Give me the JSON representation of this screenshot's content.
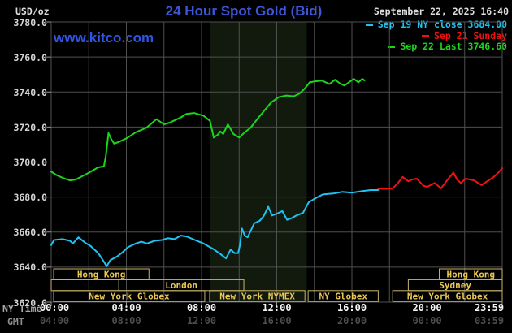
{
  "header": {
    "units_label": "USD/oz",
    "title": "24 Hour Spot Gold (Bid)",
    "watermark": "www.kitco.com",
    "datetime": "September 22, 2025 16:40"
  },
  "legend": [
    {
      "label": "Sep 19 NY close 3684.00",
      "color": "#1EC3F2"
    },
    {
      "label": "Sep 21 Sunday",
      "color": "#F21111"
    },
    {
      "label": "Sep 22 Last 3746.60",
      "color": "#1BD61B"
    }
  ],
  "colors": {
    "title_blue": "#3D56D8",
    "kitco_blue": "#2F55E3",
    "grid": "#4F4F4F",
    "band": "#121A0E",
    "session_border": "#C7B469",
    "session_text": "#E9C854",
    "tick": "#9A9A9A"
  },
  "axes": {
    "ny_time_label": "NY Time",
    "gmt_label": "GMT",
    "y_tick_labels": [
      "3780.0",
      "3760.0",
      "3740.0",
      "3720.0",
      "3700.0",
      "3680.0",
      "3660.0",
      "3640.0",
      "3620.0"
    ],
    "x_ticks": [
      {
        "hour": 0,
        "ny": "00:00",
        "gmt": "04:00"
      },
      {
        "hour": 4,
        "ny": "04:00",
        "gmt": "08:00"
      },
      {
        "hour": 8,
        "ny": "08:00",
        "gmt": "12:00"
      },
      {
        "hour": 12,
        "ny": "12:00",
        "gmt": "16:00"
      },
      {
        "hour": 16,
        "ny": "16:00",
        "gmt": "20:00"
      },
      {
        "hour": 20,
        "ny": "20:00",
        "gmt": "00:00"
      },
      {
        "hour": 24,
        "ny": "23:59",
        "gmt": "03:59"
      }
    ]
  },
  "chart_data": {
    "type": "line",
    "title": "24 Hour Spot Gold (Bid)",
    "ylabel": "USD/oz",
    "ylim": [
      3620,
      3780
    ],
    "y_tick_step": 20,
    "xlim_hours": [
      0,
      24
    ],
    "x_grid_step_hours": 2,
    "grid": true,
    "prev_ny_close": 3684.0,
    "last": 3746.6,
    "nymex_band_hours": [
      8.43,
      13.6
    ],
    "sessions": [
      {
        "row": 0,
        "start": 0.13,
        "end": 5.2,
        "label": "Hong Kong"
      },
      {
        "row": 0,
        "start": 20.65,
        "end": 24.0,
        "label": "Hong Kong"
      },
      {
        "row": 1,
        "start": 0.0,
        "end": 3.6,
        "label": ""
      },
      {
        "row": 1,
        "start": 3.6,
        "end": 10.25,
        "label": "London"
      },
      {
        "row": 1,
        "start": 19.0,
        "end": 24.0,
        "label": "Sydney"
      },
      {
        "row": 2,
        "start": 0.13,
        "end": 8.17,
        "label": "New York Globex"
      },
      {
        "row": 2,
        "start": 8.43,
        "end": 13.5,
        "label": "New York NYMEX"
      },
      {
        "row": 2,
        "start": 13.67,
        "end": 17.4,
        "label": "NY Globex"
      },
      {
        "row": 2,
        "start": 18.17,
        "end": 24.0,
        "label": "New York Globex"
      }
    ],
    "series": [
      {
        "name": "Sep 19 NY close 3684.00",
        "color": "#1EC3F2",
        "points": [
          [
            0.0,
            3652.5
          ],
          [
            0.15,
            3655.5
          ],
          [
            0.6,
            3656
          ],
          [
            1.0,
            3655
          ],
          [
            1.15,
            3653.5
          ],
          [
            1.45,
            3657
          ],
          [
            1.8,
            3654
          ],
          [
            2.1,
            3652
          ],
          [
            2.5,
            3648
          ],
          [
            2.75,
            3644
          ],
          [
            2.95,
            3640.5
          ],
          [
            3.15,
            3644
          ],
          [
            3.5,
            3646
          ],
          [
            3.8,
            3648.5
          ],
          [
            4.1,
            3651.5
          ],
          [
            4.5,
            3653.5
          ],
          [
            4.8,
            3654.5
          ],
          [
            5.1,
            3653.5
          ],
          [
            5.5,
            3655
          ],
          [
            5.9,
            3655.5
          ],
          [
            6.2,
            3656.5
          ],
          [
            6.55,
            3656
          ],
          [
            6.9,
            3658
          ],
          [
            7.2,
            3657.5
          ],
          [
            7.65,
            3655.5
          ],
          [
            8.1,
            3653.5
          ],
          [
            8.6,
            3650.5
          ],
          [
            9.0,
            3647.5
          ],
          [
            9.3,
            3645
          ],
          [
            9.55,
            3650
          ],
          [
            9.75,
            3648
          ],
          [
            9.95,
            3648
          ],
          [
            10.05,
            3653
          ],
          [
            10.15,
            3662
          ],
          [
            10.3,
            3658
          ],
          [
            10.45,
            3657
          ],
          [
            10.8,
            3665
          ],
          [
            11.1,
            3666.5
          ],
          [
            11.3,
            3669
          ],
          [
            11.55,
            3674.5
          ],
          [
            11.75,
            3669.5
          ],
          [
            12.0,
            3670.5
          ],
          [
            12.3,
            3672
          ],
          [
            12.55,
            3667
          ],
          [
            12.8,
            3668
          ],
          [
            13.05,
            3669.5
          ],
          [
            13.4,
            3671
          ],
          [
            13.7,
            3677
          ],
          [
            14.0,
            3679
          ],
          [
            14.45,
            3681.5
          ],
          [
            15.0,
            3682
          ],
          [
            15.5,
            3683
          ],
          [
            16.0,
            3682.5
          ],
          [
            16.6,
            3683.5
          ],
          [
            17.0,
            3684
          ],
          [
            17.4,
            3684
          ]
        ]
      },
      {
        "name": "Sep 21 Sunday",
        "color": "#F21111",
        "points": [
          [
            17.4,
            3684.8
          ],
          [
            18.15,
            3684.8
          ],
          [
            18.45,
            3688
          ],
          [
            18.7,
            3691.5
          ],
          [
            19.0,
            3689
          ],
          [
            19.2,
            3690
          ],
          [
            19.45,
            3690.5
          ],
          [
            19.8,
            3686.5
          ],
          [
            20.0,
            3685.8
          ],
          [
            20.4,
            3688
          ],
          [
            20.75,
            3685
          ],
          [
            21.1,
            3690
          ],
          [
            21.4,
            3694
          ],
          [
            21.6,
            3690
          ],
          [
            21.8,
            3688
          ],
          [
            22.05,
            3690.5
          ],
          [
            22.5,
            3689.5
          ],
          [
            22.9,
            3686.8
          ],
          [
            23.2,
            3689
          ],
          [
            23.5,
            3691
          ],
          [
            23.8,
            3694
          ],
          [
            24.0,
            3696.5
          ]
        ]
      },
      {
        "name": "Sep 22 Last 3746.60",
        "color": "#1BD61B",
        "points": [
          [
            0.0,
            3694.5
          ],
          [
            0.3,
            3692.5
          ],
          [
            0.6,
            3691
          ],
          [
            1.0,
            3689.5
          ],
          [
            1.3,
            3690
          ],
          [
            1.75,
            3692.5
          ],
          [
            2.1,
            3694.5
          ],
          [
            2.5,
            3697
          ],
          [
            2.8,
            3697.5
          ],
          [
            2.9,
            3703
          ],
          [
            3.05,
            3716.5
          ],
          [
            3.2,
            3713
          ],
          [
            3.35,
            3710.5
          ],
          [
            3.6,
            3711.5
          ],
          [
            4.0,
            3713.5
          ],
          [
            4.5,
            3717
          ],
          [
            5.05,
            3719.5
          ],
          [
            5.6,
            3724.5
          ],
          [
            6.0,
            3721.5
          ],
          [
            6.3,
            3722.5
          ],
          [
            6.6,
            3724
          ],
          [
            6.9,
            3725.5
          ],
          [
            7.2,
            3727.5
          ],
          [
            7.6,
            3728
          ],
          [
            8.1,
            3726.5
          ],
          [
            8.45,
            3723.5
          ],
          [
            8.65,
            3714
          ],
          [
            8.85,
            3715.5
          ],
          [
            9.0,
            3717.5
          ],
          [
            9.15,
            3716
          ],
          [
            9.4,
            3721.5
          ],
          [
            9.7,
            3716
          ],
          [
            10.0,
            3714
          ],
          [
            10.3,
            3717
          ],
          [
            10.6,
            3719.5
          ],
          [
            11.0,
            3725
          ],
          [
            11.35,
            3729.5
          ],
          [
            11.7,
            3734
          ],
          [
            12.1,
            3737
          ],
          [
            12.5,
            3738
          ],
          [
            12.9,
            3737.5
          ],
          [
            13.2,
            3739
          ],
          [
            13.5,
            3742
          ],
          [
            13.75,
            3745.5
          ],
          [
            14.0,
            3746
          ],
          [
            14.4,
            3746.5
          ],
          [
            14.8,
            3744.5
          ],
          [
            15.1,
            3747
          ],
          [
            15.35,
            3745
          ],
          [
            15.6,
            3743.7
          ],
          [
            16.1,
            3747.5
          ],
          [
            16.35,
            3745.5
          ],
          [
            16.55,
            3747.5
          ],
          [
            16.67,
            3746.6
          ]
        ]
      }
    ]
  }
}
